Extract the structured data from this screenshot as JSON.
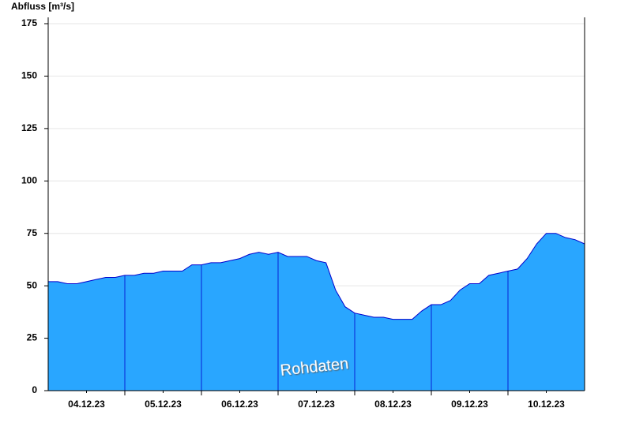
{
  "chart_data": {
    "type": "area",
    "y_label": "Abfluss [m³/s]",
    "annotation": "Rohdaten",
    "x": [
      0,
      0.125,
      0.25,
      0.375,
      0.5,
      0.625,
      0.75,
      0.875,
      1,
      1.125,
      1.25,
      1.375,
      1.5,
      1.625,
      1.75,
      1.875,
      2,
      2.125,
      2.25,
      2.375,
      2.5,
      2.625,
      2.75,
      2.875,
      3,
      3.125,
      3.25,
      3.375,
      3.5,
      3.625,
      3.75,
      3.875,
      4,
      4.125,
      4.25,
      4.375,
      4.5,
      4.625,
      4.75,
      4.875,
      5,
      5.125,
      5.25,
      5.375,
      5.5,
      5.625,
      5.75,
      5.875,
      6,
      6.125,
      6.25,
      6.375,
      6.5,
      6.625,
      6.75,
      6.875,
      7
    ],
    "series": [
      {
        "color": "#29a6ff",
        "line_color": "#0000cc",
        "values": [
          52,
          52,
          51,
          51,
          52,
          53,
          54,
          54,
          55,
          55,
          56,
          56,
          57,
          57,
          57,
          60,
          60,
          61,
          61,
          62,
          63,
          65,
          66,
          65,
          66,
          64,
          64,
          64,
          62,
          61,
          48,
          40,
          37,
          36,
          35,
          35,
          34,
          34,
          34,
          38,
          41,
          41,
          43,
          48,
          51,
          51,
          55,
          56,
          57,
          58,
          63,
          70,
          75,
          75,
          73,
          72,
          70
        ]
      }
    ],
    "xlim": [
      0,
      7
    ],
    "xticks": [
      {
        "value": 0.5,
        "label": "04.12.23"
      },
      {
        "value": 1.5,
        "label": "05.12.23"
      },
      {
        "value": 2.5,
        "label": "06.12.23"
      },
      {
        "value": 3.5,
        "label": "07.12.23"
      },
      {
        "value": 4.5,
        "label": "08.12.23"
      },
      {
        "value": 5.5,
        "label": "09.12.23"
      },
      {
        "value": 6.5,
        "label": "10.12.23"
      }
    ],
    "ylim": [
      0,
      175
    ],
    "yticks": [
      0,
      25,
      50,
      75,
      100,
      125,
      150,
      175
    ],
    "grid": true
  }
}
